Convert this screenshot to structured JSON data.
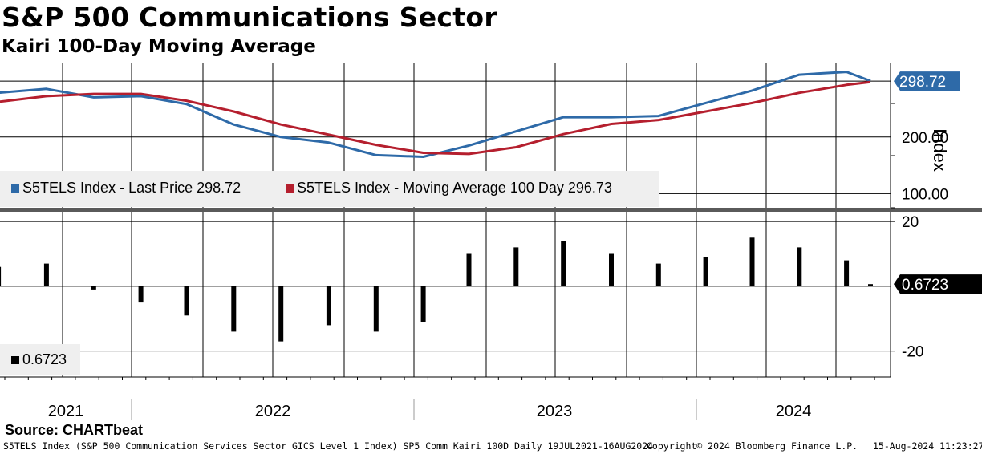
{
  "title": "S&P 500 Communications Sector",
  "subtitle": "Kairi 100-Day Moving Average",
  "source": "Source: CHARTbeat",
  "footer": {
    "description": "S5TELS Index (S&P 500 Communication Services Sector GICS Level 1 Index) SP5 Comm Kairi 100D  Daily 19JUL2021-16AUG2024",
    "copyright": "Copyright© 2024 Bloomberg Finance L.P.",
    "timestamp": "15-Aug-2024 11:23:27"
  },
  "colors": {
    "price": "#2e6aa8",
    "moving_average": "#b51f2e",
    "kairi": "#000000",
    "last_price_tag": "#2e6aa8"
  },
  "chart_data": [
    {
      "type": "line",
      "ylabel": "Index",
      "ylim": [
        75,
        330
      ],
      "yticks": [
        "100.00",
        "200.00"
      ],
      "grid": true,
      "last_value_tag": "298.72",
      "legend": {
        "placement": "bottom-left",
        "entries": [
          "S5TELS Index - Last Price 298.72",
          "S5TELS Index - Moving Average 100 Day 296.73"
        ]
      },
      "x": [
        "2021-07",
        "2021-09",
        "2021-11",
        "2022-01",
        "2022-03",
        "2022-05",
        "2022-07",
        "2022-09",
        "2022-11",
        "2023-01",
        "2023-03",
        "2023-05",
        "2023-07",
        "2023-09",
        "2023-11",
        "2024-01",
        "2024-03",
        "2024-05",
        "2024-07",
        "2024-08"
      ],
      "series": [
        {
          "name": "S5TELS Index - Last Price",
          "values": [
            278,
            285,
            270,
            272,
            258,
            222,
            200,
            190,
            168,
            165,
            185,
            210,
            235,
            235,
            237,
            260,
            282,
            310,
            315,
            299
          ]
        },
        {
          "name": "S5TELS Index - Moving Average 100 Day",
          "values": [
            262,
            272,
            276,
            276,
            264,
            245,
            222,
            204,
            186,
            172,
            170,
            182,
            205,
            223,
            230,
            245,
            260,
            278,
            292,
            297
          ]
        }
      ]
    },
    {
      "type": "bar",
      "ylim": [
        -28,
        23
      ],
      "yticks": [
        "20",
        "-20"
      ],
      "last_value_tag": "0.6723",
      "legend": {
        "placement": "bottom-left",
        "entries": [
          "0.6723"
        ]
      },
      "x_labels": [
        "2021",
        "2022",
        "2023",
        "2024"
      ],
      "x": [
        "2021-07",
        "2021-09",
        "2021-11",
        "2022-01",
        "2022-03",
        "2022-05",
        "2022-07",
        "2022-09",
        "2022-11",
        "2023-01",
        "2023-03",
        "2023-05",
        "2023-07",
        "2023-09",
        "2023-11",
        "2024-01",
        "2024-03",
        "2024-05",
        "2024-07",
        "2024-08"
      ],
      "values": [
        6,
        7,
        -1,
        -5,
        -9,
        -14,
        -17,
        -12,
        -14,
        -11,
        10,
        12,
        14,
        10,
        7,
        9,
        15,
        12,
        8,
        0.67
      ]
    }
  ]
}
